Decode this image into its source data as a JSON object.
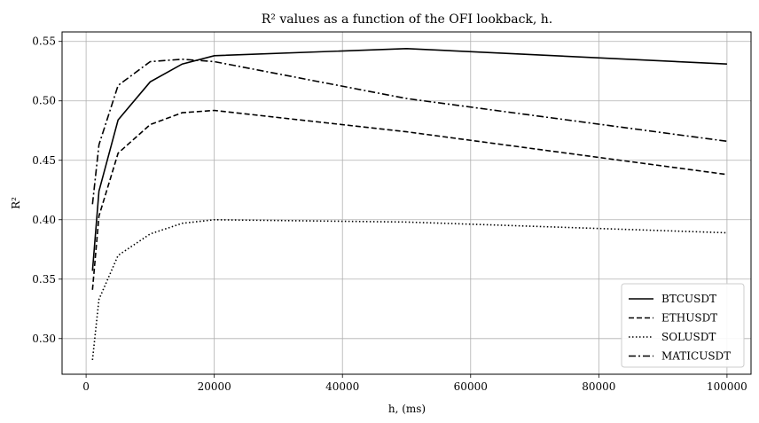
{
  "chart_data": {
    "type": "line",
    "title": "R² values as a function of the OFI lookback, h.",
    "xlabel": "h, (ms)",
    "ylabel": "R²",
    "xlim": [
      -3750,
      103750
    ],
    "ylim": [
      0.27,
      0.558
    ],
    "xticks": [
      0,
      20000,
      40000,
      60000,
      80000,
      100000
    ],
    "yticks": [
      0.3,
      0.35,
      0.4,
      0.45,
      0.5,
      0.55
    ],
    "xtick_labels": [
      "0",
      "20000",
      "40000",
      "60000",
      "80000",
      "100000"
    ],
    "ytick_labels": [
      "0.30",
      "0.35",
      "0.40",
      "0.45",
      "0.50",
      "0.55"
    ],
    "grid": true,
    "legend_position": "bottom-right",
    "line_color": "#000000",
    "x": [
      1000,
      2000,
      5000,
      10000,
      15000,
      20000,
      50000,
      100000
    ],
    "series": [
      {
        "name": "BTCUSDT",
        "style": "solid",
        "values": [
          0.357,
          0.424,
          0.484,
          0.516,
          0.531,
          0.538,
          0.544,
          0.531
        ]
      },
      {
        "name": "ETHUSDT",
        "style": "dashed",
        "values": [
          0.341,
          0.403,
          0.456,
          0.48,
          0.49,
          0.492,
          0.474,
          0.438
        ]
      },
      {
        "name": "SOLUSDT",
        "style": "dotted",
        "values": [
          0.282,
          0.333,
          0.37,
          0.388,
          0.397,
          0.4,
          0.398,
          0.389
        ]
      },
      {
        "name": "MATICUSDT",
        "style": "dashdot",
        "values": [
          0.413,
          0.463,
          0.513,
          0.533,
          0.535,
          0.533,
          0.502,
          0.466
        ]
      }
    ]
  }
}
